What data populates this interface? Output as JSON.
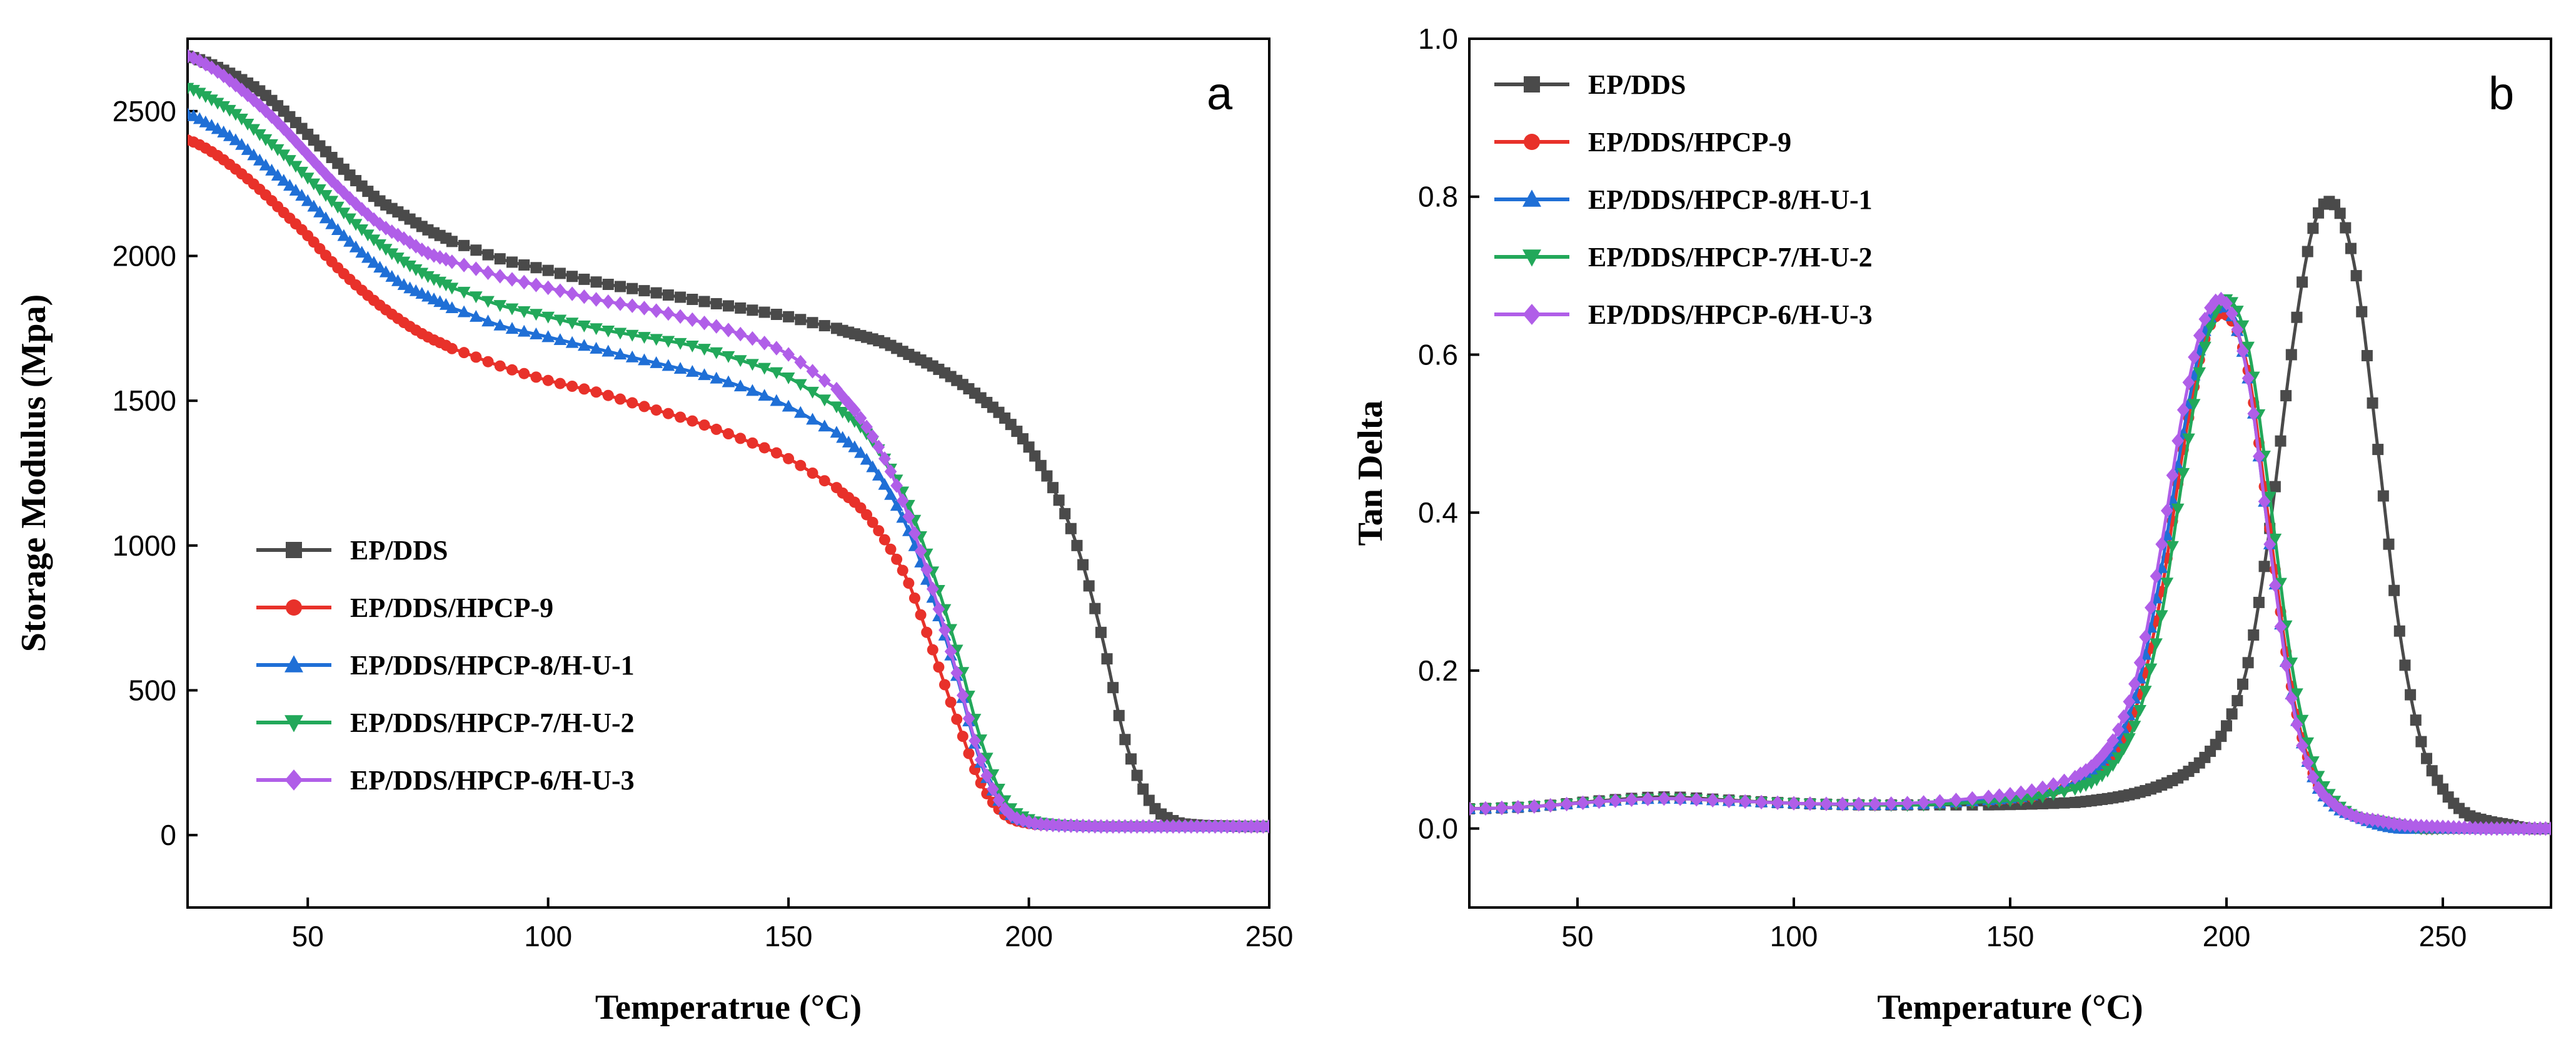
{
  "chart_data": [
    {
      "type": "line",
      "panel_label": "a",
      "title": "",
      "xlabel": "Temperatrue (°C)",
      "ylabel": "Storage Modulus (Mpa)",
      "xlim": [
        25,
        250
      ],
      "ylim": [
        -250,
        2750
      ],
      "xticks": [
        50,
        100,
        150,
        200,
        250
      ],
      "yticks": [
        0,
        500,
        1000,
        1500,
        2000,
        2500
      ],
      "legend_position": "bottom-left",
      "x": [
        25,
        30,
        35,
        40,
        45,
        50,
        55,
        60,
        65,
        70,
        75,
        80,
        90,
        100,
        110,
        120,
        130,
        140,
        150,
        160,
        165,
        170,
        175,
        180,
        185,
        190,
        195,
        200,
        205,
        210,
        215,
        220,
        225,
        230,
        235,
        240,
        245,
        250
      ],
      "series": [
        {
          "name": "EP/DDS",
          "color": "#4a4a4a",
          "marker": "square",
          "values": [
            2690,
            2660,
            2620,
            2570,
            2500,
            2420,
            2340,
            2260,
            2190,
            2140,
            2090,
            2050,
            1990,
            1950,
            1910,
            1880,
            1850,
            1820,
            1790,
            1750,
            1725,
            1700,
            1660,
            1620,
            1570,
            1510,
            1440,
            1340,
            1200,
            1000,
            700,
            330,
            120,
            50,
            35,
            32,
            30,
            30
          ]
        },
        {
          "name": "EP/DDS/HPCP-9",
          "color": "#e8312a",
          "marker": "circle",
          "values": [
            2400,
            2360,
            2300,
            2230,
            2150,
            2070,
            1980,
            1900,
            1830,
            1770,
            1720,
            1680,
            1620,
            1570,
            1530,
            1480,
            1430,
            1370,
            1300,
            1200,
            1130,
            1020,
            870,
            640,
            400,
            180,
            70,
            40,
            35,
            32,
            30,
            30,
            30,
            30,
            30,
            30,
            30,
            30
          ]
        },
        {
          "name": "EP/DDS/HPCP-8/H-U-1",
          "color": "#1f6fd6",
          "marker": "triangle-up",
          "values": [
            2490,
            2450,
            2400,
            2330,
            2260,
            2190,
            2110,
            2030,
            1960,
            1900,
            1860,
            1820,
            1760,
            1720,
            1680,
            1640,
            1600,
            1550,
            1480,
            1390,
            1320,
            1210,
            1050,
            820,
            550,
            250,
            90,
            45,
            35,
            32,
            30,
            30,
            30,
            30,
            30,
            30,
            30,
            30
          ]
        },
        {
          "name": "EP/DDS/HPCP-7/H-U-2",
          "color": "#22a85a",
          "marker": "triangle-down",
          "values": [
            2580,
            2540,
            2490,
            2420,
            2350,
            2270,
            2190,
            2110,
            2040,
            1980,
            1930,
            1890,
            1830,
            1790,
            1750,
            1720,
            1690,
            1640,
            1580,
            1480,
            1410,
            1300,
            1140,
            910,
            640,
            330,
            120,
            55,
            38,
            33,
            30,
            30,
            30,
            30,
            30,
            30,
            30,
            30
          ]
        },
        {
          "name": "EP/DDS/HPCP-6/H-U-3",
          "color": "#b05ee8",
          "marker": "diamond",
          "values": [
            2690,
            2650,
            2590,
            2520,
            2440,
            2350,
            2260,
            2180,
            2110,
            2060,
            2010,
            1980,
            1930,
            1890,
            1850,
            1820,
            1780,
            1730,
            1660,
            1540,
            1440,
            1300,
            1100,
            850,
            560,
            260,
            90,
            45,
            35,
            32,
            30,
            30,
            30,
            30,
            30,
            30,
            30,
            30
          ]
        }
      ]
    },
    {
      "type": "line",
      "panel_label": "b",
      "title": "",
      "xlabel": "Temperature (°C)",
      "ylabel": "Tan Delta",
      "xlim": [
        25,
        275
      ],
      "ylim": [
        -0.1,
        1.0
      ],
      "xticks": [
        50,
        100,
        150,
        200,
        250
      ],
      "yticks": [
        0.0,
        0.2,
        0.4,
        0.6,
        0.8,
        1.0
      ],
      "ytick_labels": [
        "0.0",
        "0.2",
        "0.4",
        "0.6",
        "0.8",
        "1.0"
      ],
      "legend_position": "top-left",
      "x": [
        25,
        40,
        55,
        70,
        85,
        100,
        115,
        130,
        145,
        155,
        165,
        170,
        175,
        180,
        185,
        190,
        195,
        200,
        205,
        210,
        215,
        220,
        225,
        230,
        235,
        240,
        245,
        250,
        255,
        260,
        265,
        270,
        275
      ],
      "series": [
        {
          "name": "EP/DDS",
          "color": "#4a4a4a",
          "marker": "square",
          "values": [
            0.025,
            0.028,
            0.035,
            0.04,
            0.036,
            0.032,
            0.03,
            0.03,
            0.03,
            0.031,
            0.033,
            0.036,
            0.04,
            0.046,
            0.055,
            0.068,
            0.09,
            0.13,
            0.21,
            0.38,
            0.6,
            0.76,
            0.79,
            0.7,
            0.48,
            0.25,
            0.11,
            0.05,
            0.02,
            0.01,
            0.005,
            0.0,
            0.0
          ]
        },
        {
          "name": "EP/DDS/HPCP-9",
          "color": "#e8312a",
          "marker": "circle",
          "values": [
            0.025,
            0.028,
            0.034,
            0.038,
            0.035,
            0.032,
            0.03,
            0.031,
            0.035,
            0.04,
            0.055,
            0.07,
            0.1,
            0.17,
            0.3,
            0.48,
            0.62,
            0.65,
            0.58,
            0.38,
            0.18,
            0.07,
            0.03,
            0.015,
            0.01,
            0.005,
            0.0,
            0.0,
            0.0,
            0.0,
            0.0,
            0.0,
            0.0
          ]
        },
        {
          "name": "EP/DDS/HPCP-8/H-U-1",
          "color": "#1f6fd6",
          "marker": "triangle-up",
          "values": [
            0.025,
            0.028,
            0.034,
            0.038,
            0.035,
            0.032,
            0.03,
            0.031,
            0.036,
            0.042,
            0.058,
            0.075,
            0.11,
            0.19,
            0.33,
            0.5,
            0.63,
            0.66,
            0.57,
            0.36,
            0.17,
            0.065,
            0.028,
            0.015,
            0.005,
            0.0,
            0.0,
            0.0,
            0.0,
            0.0,
            0.0,
            0.0,
            0.0
          ]
        },
        {
          "name": "EP/DDS/HPCP-7/H-U-2",
          "color": "#22a85a",
          "marker": "triangle-down",
          "values": [
            0.025,
            0.028,
            0.034,
            0.038,
            0.035,
            0.032,
            0.03,
            0.03,
            0.034,
            0.038,
            0.05,
            0.062,
            0.09,
            0.15,
            0.27,
            0.45,
            0.61,
            0.67,
            0.61,
            0.42,
            0.21,
            0.085,
            0.035,
            0.015,
            0.01,
            0.005,
            0.0,
            0.0,
            0.0,
            0.0,
            0.0,
            0.0,
            0.0
          ]
        },
        {
          "name": "EP/DDS/HPCP-6/H-U-3",
          "color": "#b05ee8",
          "marker": "diamond",
          "values": [
            0.025,
            0.028,
            0.034,
            0.038,
            0.035,
            0.032,
            0.031,
            0.033,
            0.04,
            0.048,
            0.065,
            0.085,
            0.125,
            0.21,
            0.36,
            0.53,
            0.645,
            0.665,
            0.57,
            0.36,
            0.165,
            0.065,
            0.03,
            0.015,
            0.01,
            0.005,
            0.003,
            0.002,
            0.001,
            0.0,
            0.0,
            0.0,
            0.0
          ]
        }
      ]
    }
  ]
}
